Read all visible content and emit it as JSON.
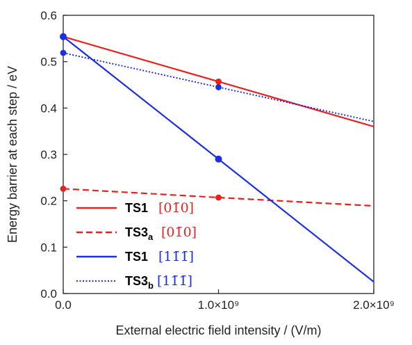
{
  "chart_data": {
    "type": "line",
    "title": "",
    "xlabel": "External electric field intensity / (V/m)",
    "ylabel": "Energy barrier at each step / eV",
    "xlim": [
      0,
      2000000000
    ],
    "ylim": [
      0,
      0.6
    ],
    "x_ticks": [
      {
        "value": 0,
        "label": "0.0"
      },
      {
        "value": 1000000000,
        "label": "1.0×10⁹"
      },
      {
        "value": 2000000000,
        "label": "2.0×10⁹"
      }
    ],
    "y_ticks": [
      {
        "value": 0.0,
        "label": "0.0"
      },
      {
        "value": 0.1,
        "label": "0.1"
      },
      {
        "value": 0.2,
        "label": "0.2"
      },
      {
        "value": 0.3,
        "label": "0.3"
      },
      {
        "value": 0.4,
        "label": "0.4"
      },
      {
        "value": 0.5,
        "label": "0.5"
      },
      {
        "value": 0.6,
        "label": "0.6"
      }
    ],
    "grid": false,
    "legend_position": "bottom-left",
    "series": [
      {
        "name": "TS1",
        "subscript": "",
        "plane": "[01̄0]",
        "color": "#e8211c",
        "style": "solid",
        "x": [
          0,
          1000000000,
          2000000000
        ],
        "values": [
          0.554,
          0.457,
          0.36
        ],
        "markers": [
          {
            "x": 0,
            "y": 0.554
          },
          {
            "x": 1000000000,
            "y": 0.457
          }
        ]
      },
      {
        "name": "TS3",
        "subscript": "a",
        "plane": "[01̄0]",
        "color": "#e8211c",
        "style": "dashed",
        "x": [
          0,
          1000000000,
          2000000000
        ],
        "values": [
          0.226,
          0.207,
          0.189
        ],
        "markers": [
          {
            "x": 0,
            "y": 0.226
          },
          {
            "x": 1000000000,
            "y": 0.207
          }
        ]
      },
      {
        "name": "TS1",
        "subscript": "",
        "plane": "[11̄1̄]",
        "color": "#1c2fe0",
        "style": "solid",
        "x": [
          0,
          1000000000,
          2000000000
        ],
        "values": [
          0.554,
          0.29,
          0.025
        ],
        "markers": [
          {
            "x": 0,
            "y": 0.554
          },
          {
            "x": 1000000000,
            "y": 0.29
          }
        ]
      },
      {
        "name": "TS3",
        "subscript": "b",
        "plane": "[11̄1̄]",
        "color": "#1c2fe0",
        "style": "dotted",
        "x": [
          0,
          1000000000,
          2000000000
        ],
        "values": [
          0.519,
          0.445,
          0.371
        ],
        "markers": [
          {
            "x": 0,
            "y": 0.519
          },
          {
            "x": 1000000000,
            "y": 0.445
          }
        ]
      }
    ]
  }
}
